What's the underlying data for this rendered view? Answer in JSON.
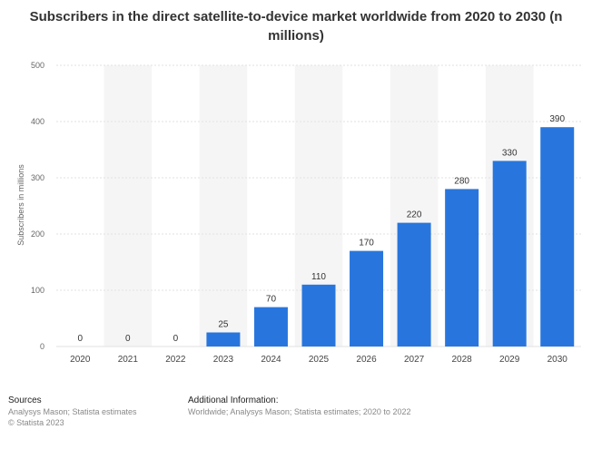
{
  "chart_data": {
    "type": "bar",
    "title": "Subscribers in the direct satellite-to-device market worldwide from 2020 to 2030 (n millions)",
    "xlabel": "",
    "ylabel": "Subscribers in millions",
    "categories": [
      "2020",
      "2021",
      "2022",
      "2023",
      "2024",
      "2025",
      "2026",
      "2027",
      "2028",
      "2029",
      "2030"
    ],
    "values": [
      0,
      0,
      0,
      25,
      70,
      110,
      170,
      220,
      280,
      330,
      390
    ],
    "data_labels": [
      "0",
      "0",
      "0",
      "25",
      "70",
      "110",
      "170",
      "220",
      "280",
      "330",
      "390"
    ],
    "ylim": [
      0,
      500
    ],
    "yticks": [
      0,
      100,
      200,
      300,
      400,
      500
    ],
    "grid": true,
    "bar_color": "#2876dd",
    "band_color": "#f5f5f5"
  },
  "footer": {
    "sources_heading": "Sources",
    "sources_text": "Analysys Mason; Statista estimates",
    "copyright": "© Statista 2023",
    "additional_heading": "Additional Information:",
    "additional_text": "Worldwide; Analysys Mason; Statista estimates; 2020 to 2022"
  }
}
